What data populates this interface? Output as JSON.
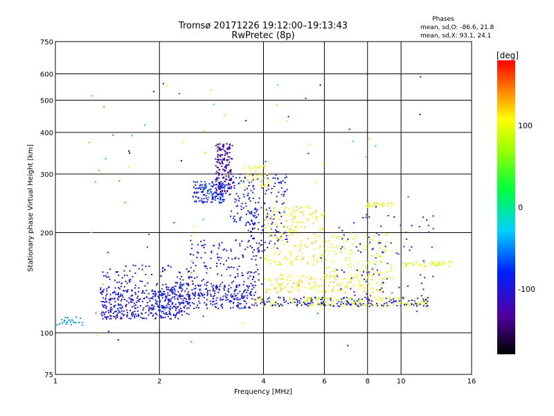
{
  "chart_data": {
    "type": "scatter",
    "title": "Tromsø 20171226 19:12:00–19:13:43",
    "subtitle": "RwPretec (8p)",
    "xlabel": "Frequency [MHz]",
    "ylabel": "Stationary phase Virtual Height [km]",
    "x_scale": "log",
    "y_scale": "log",
    "xlim": [
      1,
      16
    ],
    "ylim": [
      75,
      750
    ],
    "x_ticks": [
      1,
      2,
      4,
      6,
      8,
      10,
      16
    ],
    "x_tick_labels": [
      "1",
      "2",
      "4",
      "6",
      "8",
      "10",
      "16"
    ],
    "y_ticks": [
      75,
      100,
      200,
      300,
      400,
      500,
      600,
      750
    ],
    "y_tick_labels": [
      "75",
      "100",
      "200",
      "300",
      "400",
      "500",
      "600",
      "750"
    ],
    "grid": true,
    "stats": {
      "heading": "Phases",
      "line_o": "mean, sd,O: -86.6, 21.8",
      "line_x": "mean, sd,X:  93.1, 24.1"
    },
    "colorbar": {
      "label": "[deg]",
      "range": [
        -180,
        180
      ],
      "ticks": [
        100,
        0,
        -100
      ],
      "tick_labels": [
        "100",
        "0",
        "-100"
      ]
    },
    "clusters": [
      {
        "x": [
          1.35,
          2.35
        ],
        "y": [
          110,
          135
        ],
        "phase": [
          -110,
          -80
        ],
        "n": 260
      },
      {
        "x": [
          1.35,
          2.45
        ],
        "y": [
          112,
          160
        ],
        "phase": [
          -120,
          -85
        ],
        "n": 220
      },
      {
        "x": [
          2.0,
          3.8
        ],
        "y": [
          118,
          140
        ],
        "phase": [
          -110,
          -75
        ],
        "n": 260
      },
      {
        "x": [
          2.4,
          4.0
        ],
        "y": [
          125,
          190
        ],
        "phase": [
          -120,
          -80
        ],
        "n": 180
      },
      {
        "x": [
          2.5,
          3.1
        ],
        "y": [
          245,
          285
        ],
        "phase": [
          -100,
          -60
        ],
        "n": 150
      },
      {
        "x": [
          2.9,
          3.25
        ],
        "y": [
          260,
          370
        ],
        "phase": [
          -140,
          -110
        ],
        "n": 170
      },
      {
        "x": [
          3.2,
          3.8
        ],
        "y": [
          210,
          300
        ],
        "phase": [
          -100,
          -70
        ],
        "n": 70
      },
      {
        "x": [
          3.6,
          4.7
        ],
        "y": [
          175,
          300
        ],
        "phase": [
          -110,
          -70
        ],
        "n": 140
      },
      {
        "x": [
          3.5,
          4.2
        ],
        "y": [
          275,
          320
        ],
        "phase": [
          90,
          120
        ],
        "n": 45
      },
      {
        "x": [
          3.7,
          12.0
        ],
        "y": [
          120,
          128
        ],
        "phase": [
          85,
          115
        ],
        "n": 190
      },
      {
        "x": [
          3.7,
          12.0
        ],
        "y": [
          120,
          128
        ],
        "phase": [
          -110,
          -75
        ],
        "n": 160
      },
      {
        "x": [
          4.0,
          6.0
        ],
        "y": [
          160,
          240
        ],
        "phase": [
          90,
          130
        ],
        "n": 170
      },
      {
        "x": [
          4.0,
          9.0
        ],
        "y": [
          132,
          150
        ],
        "phase": [
          95,
          130
        ],
        "n": 150
      },
      {
        "x": [
          6.0,
          9.5
        ],
        "y": [
          145,
          200
        ],
        "phase": [
          80,
          110
        ],
        "n": 110
      },
      {
        "x": [
          8.0,
          9.5
        ],
        "y": [
          238,
          246
        ],
        "phase": [
          80,
          110
        ],
        "n": 30
      },
      {
        "x": [
          10.0,
          14.0
        ],
        "y": [
          158,
          164
        ],
        "phase": [
          80,
          110
        ],
        "n": 45
      },
      {
        "x": [
          6.5,
          12.5
        ],
        "y": [
          122,
          230
        ],
        "phase": [
          -120,
          -70
        ],
        "n": 90
      },
      {
        "x": [
          1.0,
          1.2
        ],
        "y": [
          105,
          112
        ],
        "phase": [
          -60,
          -30
        ],
        "n": 25
      },
      {
        "x": [
          1.25,
          12.5
        ],
        "y": [
          90,
          600
        ],
        "phase": [
          -180,
          180
        ],
        "n": 90
      }
    ]
  }
}
